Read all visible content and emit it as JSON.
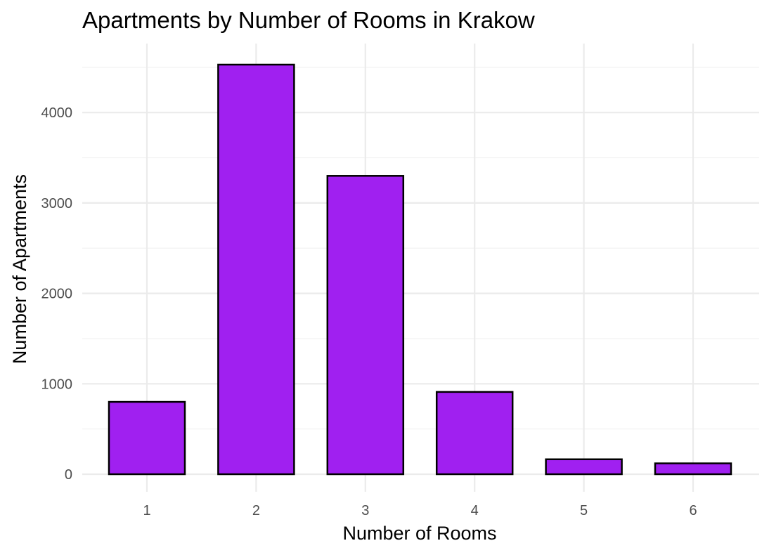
{
  "chart_data": {
    "type": "bar",
    "title": "Apartments by Number of Rooms in Krakow",
    "xlabel": "Number of Rooms",
    "ylabel": "Number of Apartments",
    "categories": [
      "1",
      "2",
      "3",
      "4",
      "5",
      "6"
    ],
    "values": [
      800,
      4530,
      3300,
      910,
      165,
      120
    ],
    "ylim": [
      0,
      4530
    ],
    "yticks": [
      0,
      1000,
      2000,
      3000,
      4000
    ],
    "ytick_labels": [
      "0",
      "1000",
      "2000",
      "3000",
      "4000"
    ],
    "grid": true,
    "legend": "none",
    "colors": {
      "bar_fill": "#a020f0",
      "bar_stroke": "#000000"
    }
  }
}
